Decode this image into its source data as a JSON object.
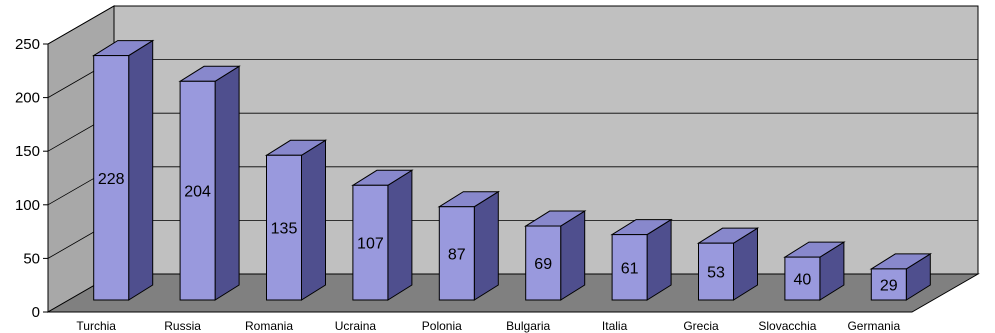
{
  "chart_data": {
    "type": "bar",
    "title": "",
    "xlabel": "",
    "ylabel": "",
    "ylim": [
      0,
      250
    ],
    "yticks": [
      0,
      50,
      100,
      150,
      200,
      250
    ],
    "grid": true,
    "legend": "none",
    "three_d": true,
    "categories": [
      "Turchia",
      "Russia",
      "Romania",
      "Ucraina",
      "Polonia",
      "Bulgaria",
      "Italia",
      "Grecia",
      "Slovacchia",
      "Germania"
    ],
    "values": [
      228,
      204,
      135,
      107,
      87,
      69,
      61,
      53,
      40,
      29
    ],
    "colors": {
      "bar_front": "#9999dd",
      "bar_top": "#8888cc",
      "bar_side": "#4f4f8e",
      "back_wall": "#c0c0c0",
      "side_wall": "#a8a8a8",
      "floor": "#808080",
      "gridline": "#000000"
    }
  }
}
